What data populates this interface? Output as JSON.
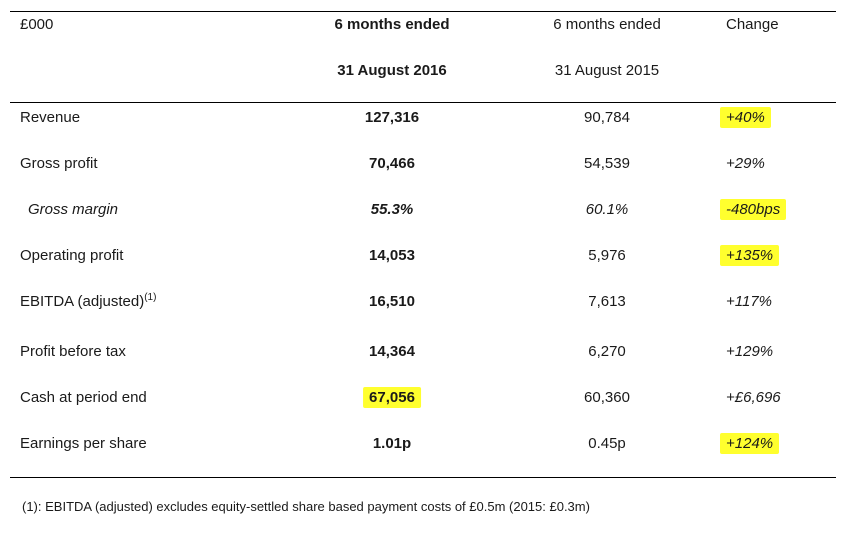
{
  "header": {
    "unit": "£000",
    "col_current_line1": "6 months ended",
    "col_current_line2": "31 August 2016",
    "col_prior_line1": "6 months ended",
    "col_prior_line2": "31 August 2015",
    "col_change": "Change"
  },
  "rows": [
    {
      "label": "Revenue",
      "current": "127,316",
      "prior": "90,784",
      "change": "+40%"
    },
    {
      "label": "Gross profit",
      "current": "70,466",
      "prior": "54,539",
      "change": "+29%"
    },
    {
      "label": "Gross margin",
      "current": "55.3%",
      "prior": "60.1%",
      "change": "-480bps"
    },
    {
      "label": "Operating profit",
      "current": "14,053",
      "prior": "5,976",
      "change": "+135%"
    },
    {
      "label": "EBITDA (adjusted)",
      "label_sup": "(1)",
      "current": "16,510",
      "prior": "7,613",
      "change": "+117%"
    },
    {
      "label": "Profit before tax",
      "current": "14,364",
      "prior": "6,270",
      "change": "+129%"
    },
    {
      "label": "Cash at period end",
      "current": "67,056",
      "prior": "60,360",
      "change": "+£6,696"
    },
    {
      "label": "Earnings per share",
      "current": "1.01p",
      "prior": "0.45p",
      "change": "+124%"
    }
  ],
  "footnote": "(1): EBITDA (adjusted) excludes equity-settled share based payment costs of £0.5m (2015: £0.3m)",
  "colors": {
    "highlight": "#ffff2e",
    "rule": "#000000"
  }
}
